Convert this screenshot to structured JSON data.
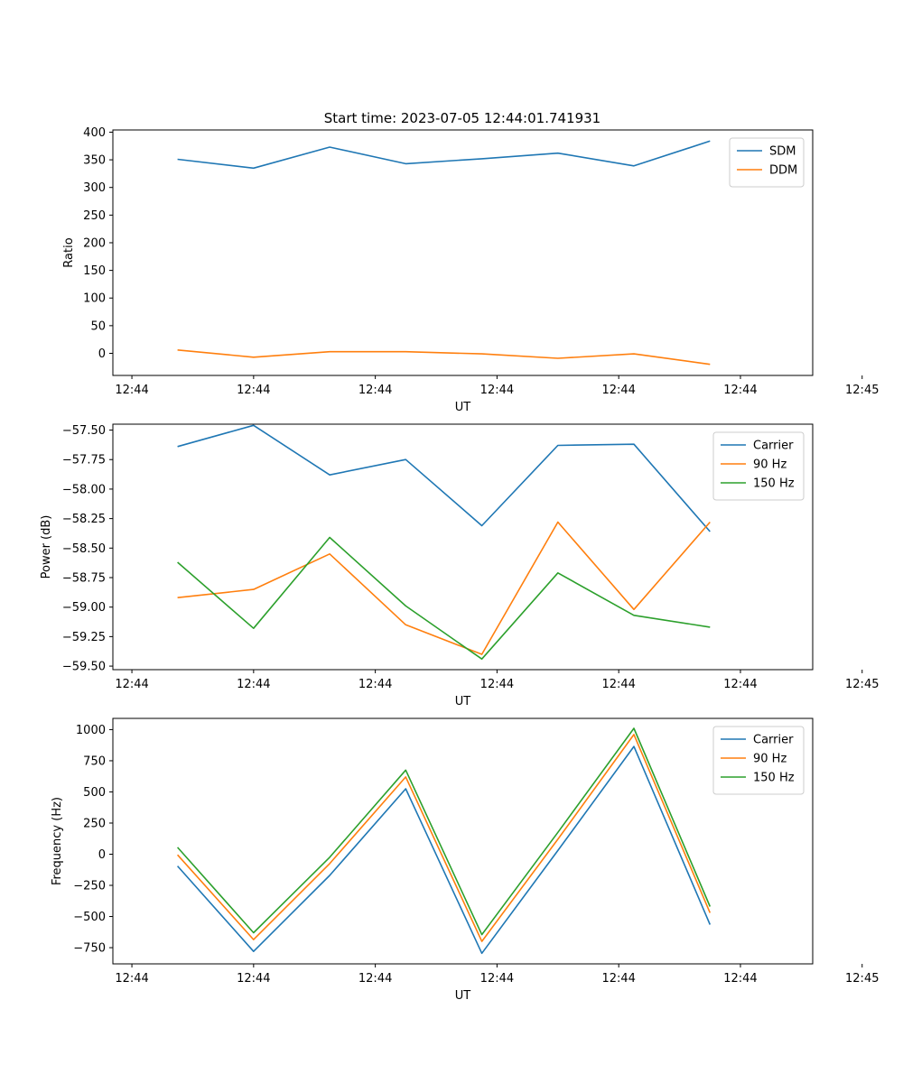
{
  "figure": {
    "title": "Start time: 2023-07-05 12:44:01.741931"
  },
  "chart_data": [
    {
      "type": "line",
      "title": "Start time: 2023-07-05 12:44:01.741931",
      "xlabel": "UT",
      "ylabel": "Ratio",
      "x": [
        1,
        2,
        3,
        4,
        5,
        6,
        7,
        8
      ],
      "xlim": [
        0.15,
        9.35
      ],
      "xticks": [
        0.4,
        2.0,
        3.6,
        5.2,
        6.8,
        8.4,
        10.0
      ],
      "xtick_labels": [
        "12:44",
        "12:44",
        "12:44",
        "12:44",
        "12:44",
        "12:44",
        "12:45"
      ],
      "ylim": [
        -40,
        404
      ],
      "yticks": [
        0,
        50,
        100,
        150,
        200,
        250,
        300,
        350,
        400
      ],
      "ytick_labels": [
        "0",
        "50",
        "100",
        "150",
        "200",
        "250",
        "300",
        "350",
        "400"
      ],
      "legend_position": "top-right",
      "series": [
        {
          "name": "SDM",
          "color": "#1f77b4",
          "values": [
            351,
            335,
            373,
            343,
            352,
            362,
            339,
            384
          ]
        },
        {
          "name": "DDM",
          "color": "#ff7f0e",
          "values": [
            6,
            -7,
            3,
            3,
            -1,
            -9,
            -1,
            -20
          ]
        }
      ]
    },
    {
      "type": "line",
      "title": "",
      "xlabel": "UT",
      "ylabel": "Power (dB)",
      "x": [
        1,
        2,
        3,
        4,
        5,
        6,
        7,
        8
      ],
      "xlim": [
        0.15,
        9.35
      ],
      "xticks": [
        0.4,
        2.0,
        3.6,
        5.2,
        6.8,
        8.4,
        10.0
      ],
      "xtick_labels": [
        "12:44",
        "12:44",
        "12:44",
        "12:44",
        "12:44",
        "12:44",
        "12:45"
      ],
      "ylim": [
        -59.53,
        -57.45
      ],
      "yticks": [
        -57.5,
        -57.75,
        -58.0,
        -58.25,
        -58.5,
        -58.75,
        -59.0,
        -59.25,
        -59.5
      ],
      "ytick_labels": [
        "−57.50",
        "−57.75",
        "−58.00",
        "−58.25",
        "−58.50",
        "−58.75",
        "−59.00",
        "−59.25",
        "−59.50"
      ],
      "legend_position": "top-right",
      "series": [
        {
          "name": "Carrier",
          "color": "#1f77b4",
          "values": [
            -57.64,
            -57.46,
            -57.88,
            -57.75,
            -58.31,
            -57.63,
            -57.62,
            -58.36
          ]
        },
        {
          "name": "90 Hz",
          "color": "#ff7f0e",
          "values": [
            -58.92,
            -58.85,
            -58.55,
            -59.15,
            -59.4,
            -58.28,
            -59.02,
            -58.28
          ]
        },
        {
          "name": "150 Hz",
          "color": "#2ca02c",
          "values": [
            -58.62,
            -59.18,
            -58.41,
            -58.99,
            -59.44,
            -58.71,
            -59.07,
            -59.17
          ]
        }
      ]
    },
    {
      "type": "line",
      "title": "",
      "xlabel": "UT",
      "ylabel": "Frequency (Hz)",
      "x": [
        1,
        2,
        3,
        4,
        5,
        6,
        7,
        8
      ],
      "xlim": [
        0.15,
        9.35
      ],
      "xticks": [
        0.4,
        2.0,
        3.6,
        5.2,
        6.8,
        8.4,
        10.0
      ],
      "xtick_labels": [
        "12:44",
        "12:44",
        "12:44",
        "12:44",
        "12:44",
        "12:44",
        "12:45"
      ],
      "ylim": [
        -880,
        1090
      ],
      "yticks": [
        1000,
        750,
        500,
        250,
        0,
        -250,
        -500,
        -750
      ],
      "ytick_labels": [
        "1000",
        "750",
        "500",
        "250",
        "0",
        "−250",
        "−500",
        "−750"
      ],
      "legend_position": "top-right",
      "series": [
        {
          "name": "Carrier",
          "color": "#1f77b4",
          "values": [
            -95,
            -780,
            -170,
            525,
            -795,
            30,
            865,
            -565
          ]
        },
        {
          "name": "90 Hz",
          "color": "#ff7f0e",
          "values": [
            -5,
            -685,
            -75,
            620,
            -700,
            120,
            960,
            -470
          ]
        },
        {
          "name": "150 Hz",
          "color": "#2ca02c",
          "values": [
            55,
            -630,
            -25,
            675,
            -645,
            175,
            1010,
            -420
          ]
        }
      ]
    }
  ]
}
